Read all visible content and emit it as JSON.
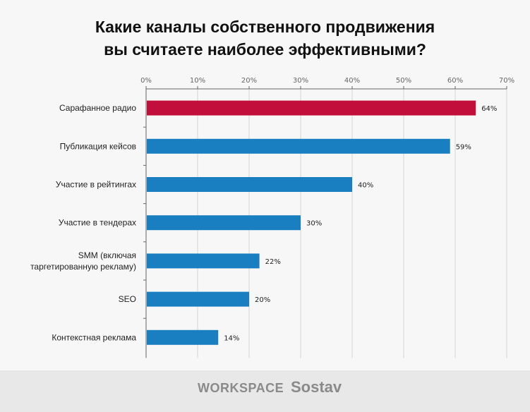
{
  "chart_data": {
    "type": "bar",
    "orientation": "horizontal",
    "title_lines": [
      "Какие каналы собственного продвижения",
      "вы считаете наиболее эффективными?"
    ],
    "categories": [
      "Сарафанное радио",
      "Публикация кейсов",
      "Участие в рейтингах",
      "Участие в тендерах",
      "SMM (включая|таргетированную рекламу)",
      "SEO",
      "Контекстная реклама"
    ],
    "values": [
      64,
      59,
      40,
      30,
      22,
      20,
      14
    ],
    "data_labels": [
      "64%",
      "59%",
      "40%",
      "30%",
      "22%",
      "20%",
      "14%"
    ],
    "xlim": [
      0,
      70
    ],
    "xticks": [
      "0%",
      "10%",
      "20%",
      "30%",
      "40%",
      "50%",
      "60%",
      "70%"
    ],
    "grid": true,
    "colors": {
      "highlight": "#c20e3a",
      "default": "#1a7fc1"
    }
  },
  "footer": {
    "logo_workspace": "WORKSPACE",
    "logo_sostav": "Sostav"
  }
}
